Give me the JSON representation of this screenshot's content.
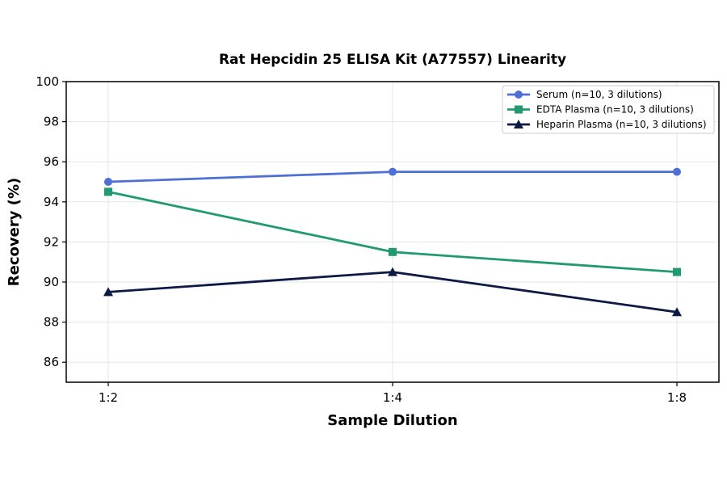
{
  "chart_data": {
    "type": "line",
    "title": "Rat Hepcidin 25 ELISA Kit (A77557) Linearity",
    "xlabel": "Sample Dilution",
    "ylabel": "Recovery (%)",
    "categories": [
      "1:2",
      "1:4",
      "1:8"
    ],
    "ylim": [
      85,
      100
    ],
    "yticks": [
      86,
      88,
      90,
      92,
      94,
      96,
      98,
      100
    ],
    "grid": true,
    "legend_position": "top-right",
    "series": [
      {
        "name": "Serum (n=10, 3 dilutions)",
        "values": [
          95.0,
          95.5,
          95.5
        ],
        "color": "#4f6fd6",
        "marker": "circle"
      },
      {
        "name": "EDTA Plasma (n=10, 3 dilutions)",
        "values": [
          94.5,
          91.5,
          90.5
        ],
        "color": "#219a72",
        "marker": "square"
      },
      {
        "name": "Heparin Plasma (n=10, 3 dilutions)",
        "values": [
          89.5,
          90.5,
          88.5
        ],
        "color": "#0c1a45",
        "marker": "triangle"
      }
    ]
  }
}
